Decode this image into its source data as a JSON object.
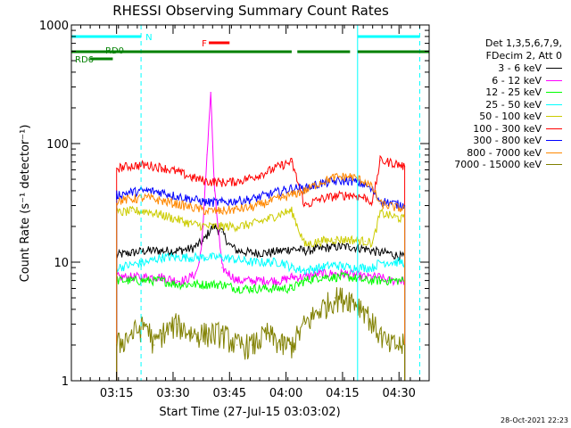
{
  "chart_data": {
    "type": "line",
    "title": "RHESSI Observing Summary Count Rates",
    "xlabel": "Start Time (27-Jul-15 03:03:02)",
    "ylabel": "Count Rate (s⁻¹ detector⁻¹)",
    "yscale": "log",
    "ylim": [
      1,
      1000
    ],
    "xlim_minutes": [
      0,
      95
    ],
    "x_ticks": [
      "03:15",
      "03:30",
      "03:45",
      "04:00",
      "04:15",
      "04:30"
    ],
    "y_ticks": [
      "1",
      "10",
      "100",
      "1000"
    ],
    "legend_header": [
      "Det 1,3,5,6,7,9,",
      "FDecim 2, Att 0"
    ],
    "series": [
      {
        "name": "3 - 6 keV",
        "color": "#000000",
        "x": [
          12,
          16,
          20,
          24,
          28,
          32,
          35,
          37,
          38,
          40,
          42,
          44,
          48,
          52,
          56,
          58.5,
          62,
          66,
          70,
          74,
          78,
          80,
          82,
          84,
          86,
          88.5
        ],
        "y": [
          11.5,
          12,
          12.5,
          12.5,
          12.5,
          13,
          15,
          19,
          20,
          18,
          14,
          12.5,
          12,
          12,
          12.5,
          13,
          12.5,
          13,
          13.5,
          13.5,
          13,
          12.5,
          12,
          12,
          11.5,
          11
        ]
      },
      {
        "name": "6 - 12 keV",
        "color": "#ff00ff",
        "x": [
          12,
          16,
          20,
          24,
          28,
          30,
          33,
          34,
          35,
          36,
          37,
          38,
          40,
          44,
          48,
          52,
          56,
          58.5,
          62,
          66,
          70,
          74,
          78,
          80,
          82,
          84,
          86,
          88.5
        ],
        "y": [
          7.5,
          7.5,
          7.5,
          7.5,
          7,
          7,
          8,
          10,
          20,
          80,
          270,
          40,
          9,
          7,
          7,
          7,
          7,
          7.5,
          7.5,
          8,
          8,
          8,
          7.5,
          7.5,
          7.5,
          7,
          7,
          7
        ]
      },
      {
        "name": "12 - 25 keV",
        "color": "#00ff00",
        "x": [
          12,
          16,
          20,
          24,
          28,
          32,
          36,
          40,
          44,
          48,
          52,
          56,
          58.5,
          62,
          66,
          70,
          74,
          78,
          80,
          82,
          84,
          86,
          88.5
        ],
        "y": [
          7,
          7,
          7,
          7,
          6.5,
          6.5,
          6.5,
          6.5,
          6,
          6,
          6,
          6,
          6,
          7,
          7.5,
          7.5,
          7.5,
          7,
          7,
          7,
          7,
          7,
          7
        ]
      },
      {
        "name": "25 - 50 keV",
        "color": "#00ffff",
        "x": [
          12,
          16,
          20,
          24,
          28,
          32,
          36,
          40,
          44,
          48,
          52,
          56,
          58.5,
          62,
          66,
          70,
          74,
          78,
          80,
          82,
          84,
          86,
          88.5
        ],
        "y": [
          9,
          9.5,
          10,
          11,
          11,
          11,
          11,
          11,
          10.5,
          10,
          10,
          10,
          9,
          8.5,
          9,
          9.5,
          9,
          9,
          9,
          10,
          10,
          10,
          10
        ]
      },
      {
        "name": "50 - 100 keV",
        "color": "#cccc00",
        "x": [
          12,
          16,
          20,
          24,
          28,
          32,
          36,
          40,
          44,
          48,
          52,
          56,
          58.5,
          62,
          66,
          70,
          74,
          78,
          80,
          82,
          84,
          86,
          88.5
        ],
        "y": [
          26,
          27,
          27,
          25,
          23,
          21,
          20,
          20,
          20,
          21,
          23,
          26,
          27,
          14,
          15,
          15.5,
          15.5,
          15,
          14.5,
          26,
          25,
          24,
          23
        ]
      },
      {
        "name": "100 - 300 keV",
        "color": "#ff0000",
        "x": [
          12,
          16,
          20,
          24,
          28,
          32,
          36,
          40,
          44,
          48,
          52,
          56,
          58.5,
          62,
          66,
          70,
          74,
          78,
          80,
          82,
          84,
          86,
          88.5
        ],
        "y": [
          62,
          65,
          66,
          63,
          58,
          52,
          48,
          47,
          48,
          52,
          58,
          66,
          70,
          30,
          34,
          36,
          37,
          35,
          32,
          72,
          70,
          68,
          64
        ]
      },
      {
        "name": "300 - 800 keV",
        "color": "#0000ff",
        "x": [
          12,
          16,
          20,
          24,
          28,
          32,
          36,
          40,
          44,
          48,
          52,
          56,
          58.5,
          62,
          66,
          70,
          74,
          78,
          80,
          82,
          84,
          86,
          88.5
        ],
        "y": [
          37,
          39,
          40,
          39,
          36,
          34,
          32,
          32,
          33,
          34,
          37,
          40,
          42,
          42,
          46,
          48,
          49,
          45,
          40,
          33,
          32,
          31,
          30
        ]
      },
      {
        "name": "800 - 7000 keV",
        "color": "#ff8800",
        "x": [
          12,
          16,
          20,
          24,
          28,
          32,
          36,
          40,
          44,
          48,
          52,
          56,
          58.5,
          62,
          66,
          70,
          74,
          78,
          80,
          82,
          84,
          86,
          88.5
        ],
        "y": [
          33,
          34,
          35,
          33,
          31,
          29,
          27,
          27,
          28,
          29,
          32,
          35,
          37,
          40,
          47,
          52,
          53,
          48,
          42,
          31,
          30,
          29,
          28
        ]
      },
      {
        "name": "7000 - 15000 keV",
        "color": "#808000",
        "x": [
          12,
          16,
          20,
          22,
          24,
          28,
          32,
          36,
          40,
          44,
          48,
          52,
          56,
          58.5,
          62,
          66,
          70,
          74,
          78,
          80,
          82,
          84,
          86,
          88.5
        ],
        "y": [
          2,
          2.5,
          3,
          2,
          2.5,
          3,
          2.5,
          2.5,
          2.5,
          2,
          2,
          2.5,
          2,
          2,
          3,
          4,
          5,
          5,
          4,
          3,
          2.5,
          2,
          2,
          2
        ]
      }
    ],
    "flags": [
      {
        "label": "N",
        "color": "#00ffff",
        "segments": [
          [
            0,
            18.5
          ],
          [
            76,
            92.5
          ]
        ]
      },
      {
        "label": "F",
        "color": "#ff0000",
        "segments": [
          [
            36.5,
            42
          ]
        ]
      },
      {
        "label": "RD0",
        "color": "#008000",
        "segments": [
          [
            0,
            58.5
          ],
          [
            60,
            74
          ],
          [
            76,
            95
          ]
        ]
      },
      {
        "label": "RD6",
        "color": "#008000",
        "segments": [
          [
            5,
            11
          ]
        ]
      }
    ],
    "vlines_solid_cyan": [
      0,
      76
    ],
    "vlines_dashed_cyan": [
      18.5,
      92.5
    ],
    "timestamp": "28-Oct-2021 22:23"
  }
}
